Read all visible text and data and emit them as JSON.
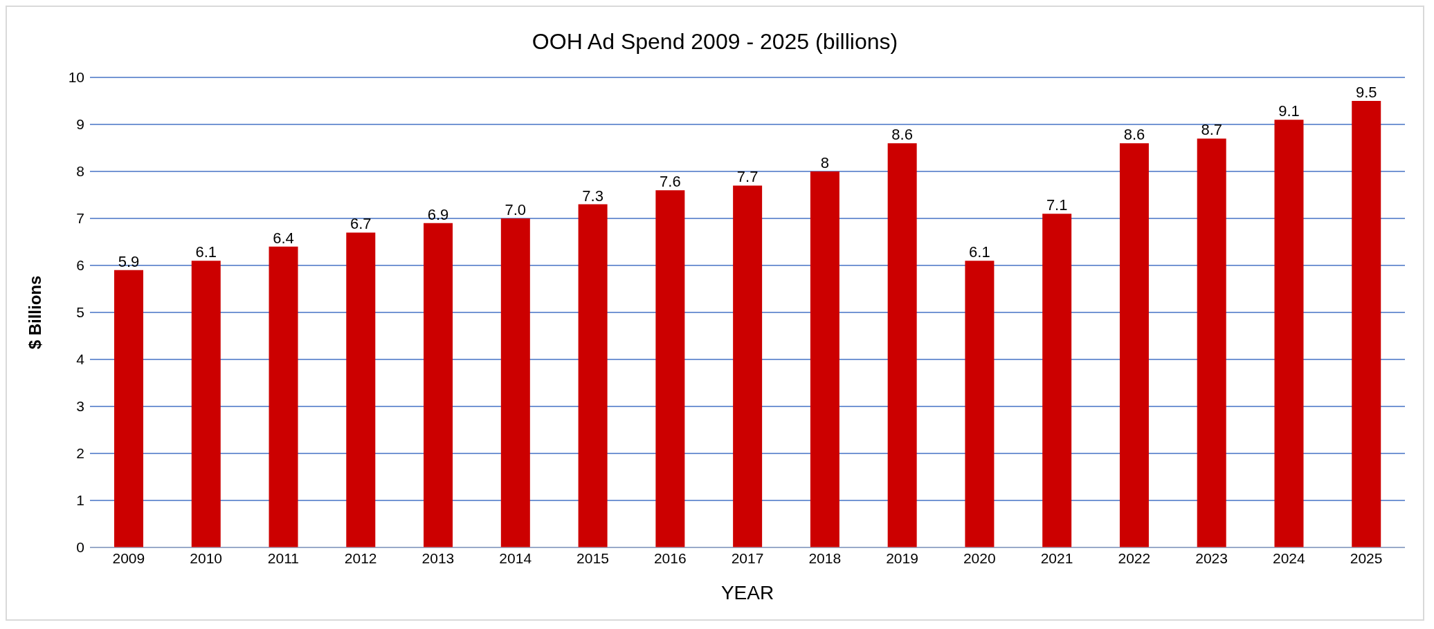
{
  "chart_data": {
    "type": "bar",
    "title": "OOH Ad Spend 2009 - 2025 (billions)",
    "xlabel": "YEAR",
    "ylabel": "$ Billions",
    "categories": [
      "2009",
      "2010",
      "2011",
      "2012",
      "2013",
      "2014",
      "2015",
      "2016",
      "2017",
      "2018",
      "2019",
      "2020",
      "2021",
      "2022",
      "2023",
      "2024",
      "2025"
    ],
    "values": [
      5.9,
      6.1,
      6.4,
      6.7,
      6.9,
      7.0,
      7.3,
      7.6,
      7.7,
      8,
      8.6,
      6.1,
      7.1,
      8.6,
      8.7,
      9.1,
      9.5
    ],
    "value_labels": [
      "5.9",
      "6.1",
      "6.4",
      "6.7",
      "6.9",
      "7.0",
      "7.3",
      "7.6",
      "7.7",
      "8",
      "8.6",
      "6.1",
      "7.1",
      "8.6",
      "8.7",
      "9.1",
      "9.5"
    ],
    "color": "#cc0000",
    "ylim": [
      0,
      10
    ],
    "yticks": [
      0,
      1,
      2,
      3,
      4,
      5,
      6,
      7,
      8,
      9,
      10
    ],
    "grid": "y"
  }
}
